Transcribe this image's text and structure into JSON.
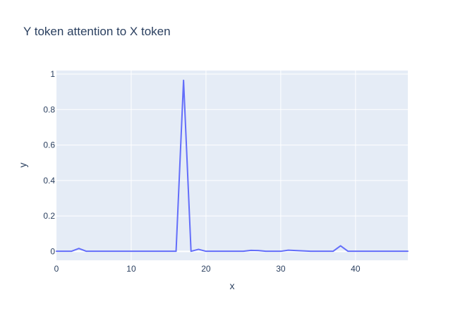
{
  "chart_data": {
    "type": "line",
    "title": "Y token attention to X token",
    "xlabel": "x",
    "ylabel": "y",
    "xlim": [
      0,
      47
    ],
    "ylim": [
      -0.05,
      1.02
    ],
    "xticks": [
      0,
      10,
      20,
      30,
      40
    ],
    "yticks": [
      0,
      0.2,
      0.4,
      0.6,
      0.8,
      1
    ],
    "grid": true,
    "legend": "none",
    "colors": {
      "plot_bg": "#E5ECF6",
      "grid": "#FFFFFF",
      "line": "#636EFA",
      "text": "#2A3F5F"
    },
    "series": [
      {
        "x": [
          0,
          1,
          2,
          3,
          4,
          5,
          6,
          7,
          8,
          9,
          10,
          11,
          12,
          13,
          14,
          15,
          16,
          17,
          18,
          19,
          20,
          21,
          22,
          23,
          24,
          25,
          26,
          27,
          28,
          29,
          30,
          31,
          32,
          33,
          34,
          35,
          36,
          37,
          38,
          39,
          40,
          41,
          42,
          43,
          44,
          45,
          46,
          47
        ],
        "values": [
          0.001,
          0.001,
          0.001,
          0.017,
          0.001,
          0.001,
          0.001,
          0.001,
          0.001,
          0.001,
          0.001,
          0.001,
          0.001,
          0.001,
          0.001,
          0.001,
          0.001,
          0.965,
          0.001,
          0.012,
          0.001,
          0.001,
          0.001,
          0.001,
          0.001,
          0.001,
          0.006,
          0.005,
          0.001,
          0.001,
          0.001,
          0.007,
          0.005,
          0.003,
          0.001,
          0.001,
          0.001,
          0.001,
          0.032,
          0.001,
          0.001,
          0.001,
          0.001,
          0.001,
          0.001,
          0.001,
          0.001,
          0.001
        ]
      }
    ]
  }
}
